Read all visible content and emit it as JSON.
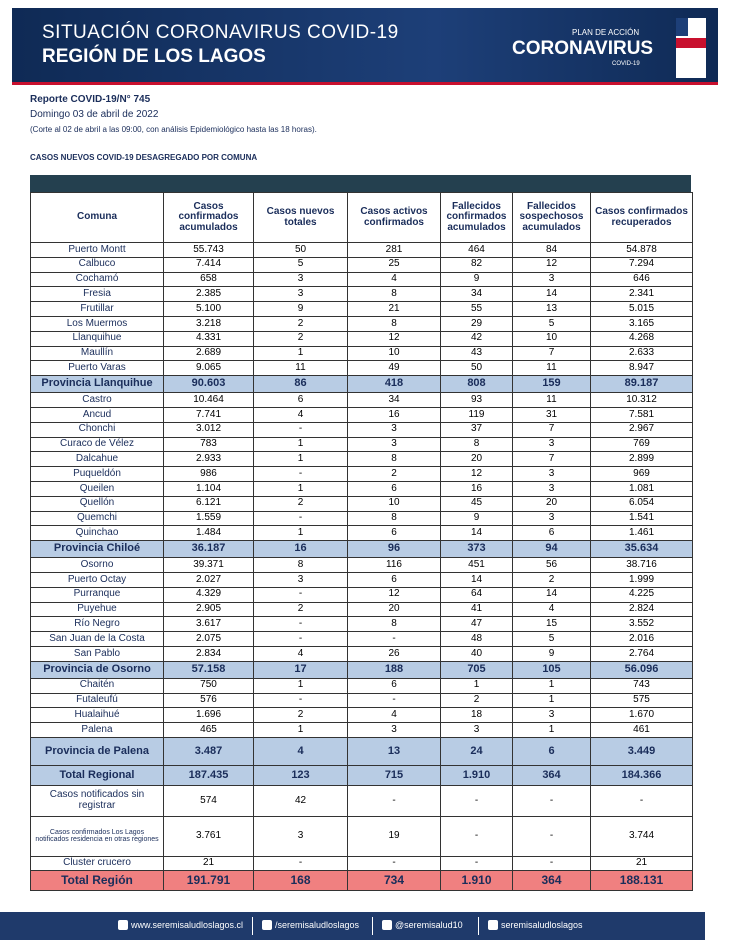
{
  "header": {
    "title": "SITUACIÓN CORONAVIRUS COVID-19",
    "subtitle": "REGIÓN DE LOS LAGOS",
    "logo_top": "PLAN DE ACCIÓN",
    "logo_main": "CORONAVIRUS",
    "logo_sub": "COVID-19"
  },
  "report": {
    "number": "Reporte COVID-19/N° 745",
    "date": "Domingo  03 de abril de 2022",
    "cutoff": "(Corte al 02 de abril a las 09:00, con análisis Epidemiológico hasta las 18 horas).",
    "section": "CASOS NUEVOS COVID-19 DESAGREGADO POR COMUNA"
  },
  "table": {
    "columns": [
      "Comuna",
      "Casos confirmados acumulados",
      "Casos nuevos totales",
      "Casos activos confirmados",
      "Fallecidos confirmados acumulados",
      "Fallecidos sospechosos acumulados",
      "Casos confirmados recuperados"
    ],
    "rows": [
      [
        "Puerto Montt",
        "55.743",
        "50",
        "281",
        "464",
        "84",
        "54.878"
      ],
      [
        "Calbuco",
        "7.414",
        "5",
        "25",
        "82",
        "12",
        "7.294"
      ],
      [
        "Cochamó",
        "658",
        "3",
        "4",
        "9",
        "3",
        "646"
      ],
      [
        "Fresia",
        "2.385",
        "3",
        "8",
        "34",
        "14",
        "2.341"
      ],
      [
        "Frutillar",
        "5.100",
        "9",
        "21",
        "55",
        "13",
        "5.015"
      ],
      [
        "Los Muermos",
        "3.218",
        "2",
        "8",
        "29",
        "5",
        "3.165"
      ],
      [
        "Llanquihue",
        "4.331",
        "2",
        "12",
        "42",
        "10",
        "4.268"
      ],
      [
        "Maullín",
        "2.689",
        "1",
        "10",
        "43",
        "7",
        "2.633"
      ],
      [
        "Puerto Varas",
        "9.065",
        "11",
        "49",
        "50",
        "11",
        "8.947"
      ],
      [
        "Provincia Llanquihue",
        "90.603",
        "86",
        "418",
        "808",
        "159",
        "89.187"
      ],
      [
        "Castro",
        "10.464",
        "6",
        "34",
        "93",
        "11",
        "10.312"
      ],
      [
        "Ancud",
        "7.741",
        "4",
        "16",
        "119",
        "31",
        "7.581"
      ],
      [
        "Chonchi",
        "3.012",
        "-",
        "3",
        "37",
        "7",
        "2.967"
      ],
      [
        "Curaco de Vélez",
        "783",
        "1",
        "3",
        "8",
        "3",
        "769"
      ],
      [
        "Dalcahue",
        "2.933",
        "1",
        "8",
        "20",
        "7",
        "2.899"
      ],
      [
        "Puqueldón",
        "986",
        "-",
        "2",
        "12",
        "3",
        "969"
      ],
      [
        "Queilen",
        "1.104",
        "1",
        "6",
        "16",
        "3",
        "1.081"
      ],
      [
        "Quellón",
        "6.121",
        "2",
        "10",
        "45",
        "20",
        "6.054"
      ],
      [
        "Quemchi",
        "1.559",
        "-",
        "8",
        "9",
        "3",
        "1.541"
      ],
      [
        "Quinchao",
        "1.484",
        "1",
        "6",
        "14",
        "6",
        "1.461"
      ],
      [
        "Provincia  Chiloé",
        "36.187",
        "16",
        "96",
        "373",
        "94",
        "35.634"
      ],
      [
        "Osorno",
        "39.371",
        "8",
        "116",
        "451",
        "56",
        "38.716"
      ],
      [
        "Puerto Octay",
        "2.027",
        "3",
        "6",
        "14",
        "2",
        "1.999"
      ],
      [
        "Purranque",
        "4.329",
        "-",
        "12",
        "64",
        "14",
        "4.225"
      ],
      [
        "Puyehue",
        "2.905",
        "2",
        "20",
        "41",
        "4",
        "2.824"
      ],
      [
        "Río Negro",
        "3.617",
        "-",
        "8",
        "47",
        "15",
        "3.552"
      ],
      [
        "San Juan de la Costa",
        "2.075",
        "-",
        "-",
        "48",
        "5",
        "2.016"
      ],
      [
        "San Pablo",
        "2.834",
        "4",
        "26",
        "40",
        "9",
        "2.764"
      ],
      [
        "Provincia de Osorno",
        "57.158",
        "17",
        "188",
        "705",
        "105",
        "56.096"
      ],
      [
        "Chaitén",
        "750",
        "1",
        "6",
        "1",
        "1",
        "743"
      ],
      [
        "Futaleufú",
        "576",
        "-",
        "-",
        "2",
        "1",
        "575"
      ],
      [
        "Hualaihué",
        "1.696",
        "2",
        "4",
        "18",
        "3",
        "1.670"
      ],
      [
        "Palena",
        "465",
        "1",
        "3",
        "3",
        "1",
        "461"
      ],
      [
        "Provincia de Palena",
        "3.487",
        "4",
        "13",
        "24",
        "6",
        "3.449"
      ],
      [
        "Total Regional",
        "187.435",
        "123",
        "715",
        "1.910",
        "364",
        "184.366"
      ],
      [
        "Casos notificados sin registrar",
        "574",
        "42",
        "-",
        "-",
        "-",
        "-"
      ],
      [
        "Casos confirmados Los  Lagos notificados  residencia en otras  regiones",
        "3.761",
        "3",
        "19",
        "-",
        "-",
        "3.744"
      ],
      [
        "Cluster crucero",
        "21",
        "-",
        "-",
        "-",
        "-",
        "21"
      ],
      [
        "Total Región",
        "191.791",
        "168",
        "734",
        "1.910",
        "364",
        "188.131"
      ]
    ]
  },
  "footer": {
    "web": "www.seremisaludloslagos.cl",
    "facebook": "/seremisaludloslagos",
    "twitter": "@seremisalud10",
    "instagram": "seremisaludloslagos"
  }
}
